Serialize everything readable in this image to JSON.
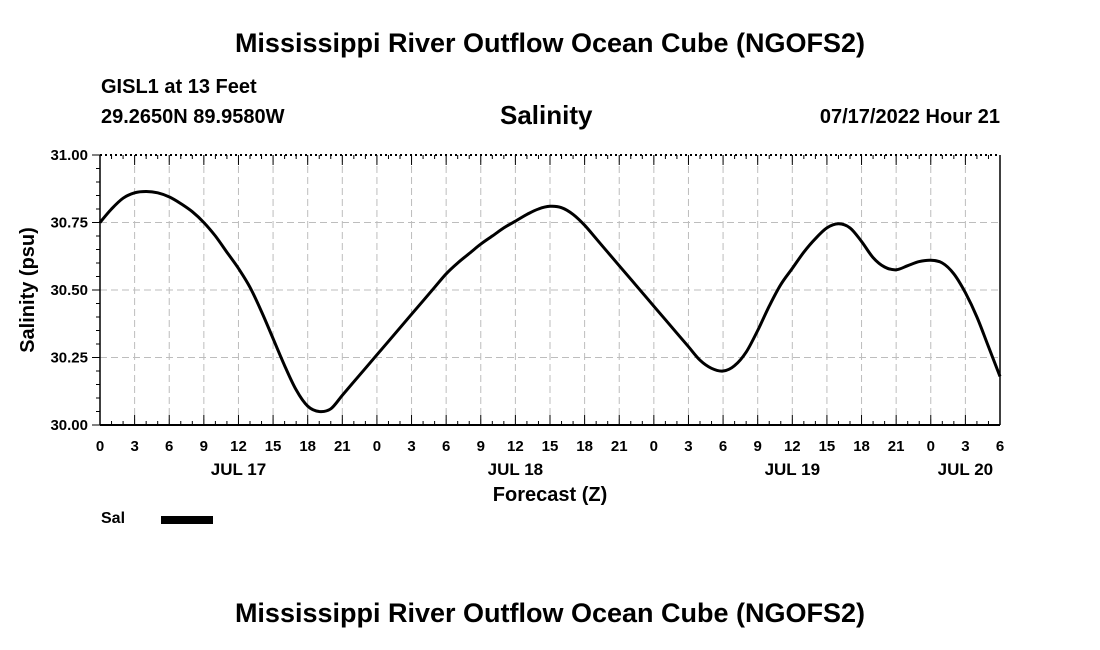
{
  "header": {
    "title": "Mississippi River Outflow Ocean Cube (NGOFS2)",
    "station": "GISL1 at 13 Feet",
    "coords": "29.2650N  89.9580W",
    "parameter": "Salinity",
    "datetime": "07/17/2022 Hour 21"
  },
  "footer": {
    "title": "Mississippi River Outflow Ocean Cube (NGOFS2)"
  },
  "legend": {
    "label": "Sal"
  },
  "chart_data": {
    "type": "line",
    "title": "Salinity",
    "xlabel": "Forecast (Z)",
    "ylabel": "Salinity (psu)",
    "x_unit": "hours from Jul 17 00Z",
    "xlim": [
      0,
      78
    ],
    "ylim": [
      30.0,
      31.0
    ],
    "y_ticks": [
      "30.00",
      "30.25",
      "30.50",
      "30.75",
      "31.00"
    ],
    "x_tick_labels": [
      "0",
      "3",
      "6",
      "9",
      "12",
      "15",
      "18",
      "21",
      "0",
      "3",
      "6",
      "9",
      "12",
      "15",
      "18",
      "21",
      "0",
      "3",
      "6",
      "9",
      "12",
      "15",
      "18",
      "21",
      "0",
      "3",
      "6"
    ],
    "day_labels": [
      {
        "hour": 12,
        "label": "JUL 17"
      },
      {
        "hour": 36,
        "label": "JUL 18"
      },
      {
        "hour": 60,
        "label": "JUL 19"
      },
      {
        "hour": 75,
        "label": "JUL 20"
      }
    ],
    "grid": true,
    "series": [
      {
        "name": "Sal",
        "color": "#000000",
        "x": [
          0,
          1,
          2,
          3,
          4,
          5,
          6,
          7,
          8,
          9,
          10,
          11,
          12,
          13,
          14,
          15,
          16,
          17,
          18,
          19,
          20,
          21,
          22,
          23,
          24,
          25,
          26,
          27,
          28,
          29,
          30,
          31,
          32,
          33,
          34,
          35,
          36,
          37,
          38,
          39,
          40,
          41,
          42,
          43,
          44,
          45,
          46,
          47,
          48,
          49,
          50,
          51,
          52,
          53,
          54,
          55,
          56,
          57,
          58,
          59,
          60,
          61,
          62,
          63,
          64,
          65,
          66,
          67,
          68,
          69,
          70,
          71,
          72,
          73,
          74,
          75,
          76,
          77,
          78
        ],
        "values": [
          30.75,
          30.8,
          30.84,
          30.86,
          30.865,
          30.86,
          30.845,
          30.82,
          30.79,
          30.75,
          30.7,
          30.64,
          30.58,
          30.51,
          30.42,
          30.32,
          30.22,
          30.13,
          30.07,
          30.05,
          30.06,
          30.11,
          30.16,
          30.21,
          30.26,
          30.31,
          30.36,
          30.41,
          30.46,
          30.51,
          30.56,
          30.6,
          30.635,
          30.67,
          30.7,
          30.73,
          30.755,
          30.78,
          30.8,
          30.81,
          30.805,
          30.78,
          30.74,
          30.69,
          30.64,
          30.59,
          30.54,
          30.49,
          30.44,
          30.39,
          30.34,
          30.29,
          30.24,
          30.21,
          30.2,
          30.22,
          30.27,
          30.35,
          30.44,
          30.52,
          30.58,
          30.64,
          30.69,
          30.73,
          30.745,
          30.73,
          30.68,
          30.62,
          30.585,
          30.575,
          30.59,
          30.605,
          30.61,
          30.6,
          30.56,
          30.49,
          30.4,
          30.29,
          30.18
        ]
      }
    ]
  }
}
